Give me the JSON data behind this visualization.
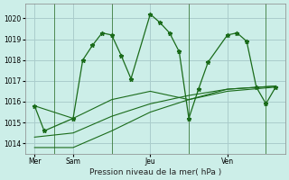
{
  "bg_color": "#cceee8",
  "plot_bg_color": "#cceee8",
  "grid_color": "#aacccc",
  "line_color": "#1a6b1a",
  "title": "Pression niveau de la mer( hPa )",
  "ylim": [
    1013.5,
    1020.7
  ],
  "yticks": [
    1014,
    1015,
    1016,
    1017,
    1018,
    1019,
    1020
  ],
  "xlim": [
    0,
    13.5
  ],
  "xtick_positions": [
    0.5,
    2.5,
    6.5,
    10.5
  ],
  "xtick_labels": [
    "Mer",
    "Sam",
    "Jeu",
    "Ven"
  ],
  "day_vlines": [
    1.5,
    4.5,
    8.5,
    12.5
  ],
  "series1_x": [
    0.5,
    1.0,
    2.5,
    3.0,
    3.5,
    4.0,
    4.5,
    5.0,
    5.5,
    6.5,
    7.0,
    7.5,
    8.0,
    8.5,
    9.0,
    9.5,
    10.5,
    11.0,
    11.5,
    12.0,
    12.5,
    13.0
  ],
  "series1_y": [
    1015.8,
    1014.6,
    1015.2,
    1018.0,
    1018.7,
    1019.3,
    1019.2,
    1018.2,
    1017.1,
    1020.2,
    1019.8,
    1019.3,
    1018.4,
    1015.2,
    1016.6,
    1017.9,
    1019.2,
    1019.3,
    1018.9,
    1016.7,
    1015.9,
    1016.7
  ],
  "series2_x": [
    0.5,
    2.5,
    4.5,
    6.5,
    8.5,
    10.5,
    13.0
  ],
  "series2_y": [
    1015.8,
    1015.2,
    1016.1,
    1016.5,
    1016.1,
    1016.5,
    1016.7
  ],
  "series3_x": [
    0.5,
    2.5,
    4.5,
    6.5,
    8.5,
    10.5,
    13.0
  ],
  "series3_y": [
    1013.8,
    1013.8,
    1014.6,
    1015.5,
    1016.1,
    1016.6,
    1016.75
  ],
  "series4_x": [
    0.5,
    2.5,
    4.5,
    6.5,
    8.5,
    10.5,
    13.0
  ],
  "series4_y": [
    1014.3,
    1014.5,
    1015.3,
    1015.9,
    1016.3,
    1016.6,
    1016.75
  ],
  "figsize": [
    3.2,
    2.0
  ],
  "dpi": 100
}
